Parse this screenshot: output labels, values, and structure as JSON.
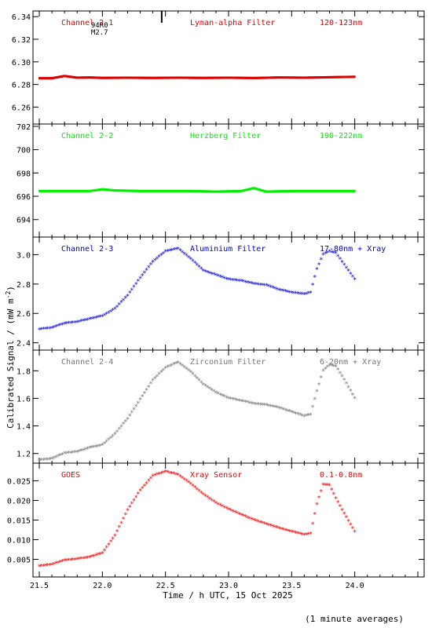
{
  "figure": {
    "ylabel": "Calibrated Signal / (mW m",
    "ylabel_sup": "-2",
    "ylabel_end": ")",
    "xlabel": "Time / h UTC, 15 Oct 2025",
    "footnote": "(1 minute averages)"
  },
  "chart_data": [
    {
      "type": "scatter",
      "channel": "Channel 2-1",
      "filter": "Lyman-alpha Filter",
      "band": "120-123nm",
      "color": "#dd0000",
      "ylim": [
        6.245,
        6.345
      ],
      "yticks": [
        6.26,
        6.28,
        6.3,
        6.32,
        6.34
      ],
      "ytick_labels": [
        "6.26",
        "6.28",
        "6.30",
        "6.32",
        "6.34"
      ],
      "flare_marker": {
        "x": 22.47,
        "label1": "94R0",
        "label2": "M2.7"
      },
      "series": [
        {
          "x": [
            21.5,
            21.6,
            21.7,
            21.8,
            21.9,
            22.0,
            22.2,
            22.4,
            22.6,
            22.8,
            23.0,
            23.2,
            23.4,
            23.6,
            23.8,
            24.0
          ],
          "y": [
            6.2855,
            6.2855,
            6.2875,
            6.286,
            6.2862,
            6.2858,
            6.286,
            6.2858,
            6.286,
            6.2858,
            6.286,
            6.2857,
            6.2862,
            6.286,
            6.2864,
            6.2868
          ]
        }
      ]
    },
    {
      "type": "scatter",
      "channel": "Channel 2-2",
      "filter": "Herzberg Filter",
      "band": "190-222nm",
      "color": "#00ee00",
      "ylim": [
        692.5,
        702.2
      ],
      "yticks": [
        694,
        696,
        698,
        700,
        702
      ],
      "ytick_labels": [
        "694",
        "696",
        "698",
        "700",
        "702"
      ],
      "series": [
        {
          "x": [
            21.5,
            21.7,
            21.9,
            22.0,
            22.1,
            22.3,
            22.5,
            22.7,
            22.9,
            23.1,
            23.2,
            23.3,
            23.5,
            23.7,
            23.9,
            24.0
          ],
          "y": [
            696.45,
            696.45,
            696.45,
            696.6,
            696.5,
            696.45,
            696.45,
            696.45,
            696.4,
            696.45,
            696.7,
            696.4,
            696.45,
            696.45,
            696.45,
            696.45
          ]
        }
      ]
    },
    {
      "type": "scatter",
      "channel": "Channel 2-3",
      "filter": "Aluminium Filter",
      "band": "17-80nm + Xray",
      "color": "#0000cc",
      "ylim": [
        2.35,
        3.12
      ],
      "yticks": [
        2.4,
        2.6,
        2.8,
        3.0
      ],
      "ytick_labels": [
        "2.4",
        "2.6",
        "2.8",
        "3.0"
      ],
      "series": [
        {
          "x": [
            21.5,
            21.6,
            21.7,
            21.8,
            21.9,
            22.0,
            22.1,
            22.2,
            22.3,
            22.4,
            22.5,
            22.6,
            22.7,
            22.8,
            22.9,
            23.0,
            23.1,
            23.2,
            23.3,
            23.4,
            23.5,
            23.6,
            23.65,
            23.7,
            23.75,
            23.8,
            23.85,
            23.9,
            24.0
          ],
          "y": [
            2.49,
            2.5,
            2.53,
            2.54,
            2.56,
            2.58,
            2.63,
            2.72,
            2.84,
            2.95,
            3.02,
            3.04,
            2.97,
            2.89,
            2.86,
            2.83,
            2.82,
            2.8,
            2.79,
            2.76,
            2.74,
            2.73,
            2.74,
            2.9,
            3.0,
            3.02,
            3.01,
            2.95,
            2.83
          ]
        }
      ]
    },
    {
      "type": "scatter",
      "channel": "Channel 2-4",
      "filter": "Zirconium Filter",
      "band": "6-20nm + Xray",
      "color": "#777777",
      "ylim": [
        1.13,
        1.95
      ],
      "yticks": [
        1.2,
        1.4,
        1.6,
        1.8
      ],
      "ytick_labels": [
        "1.2",
        "1.4",
        "1.6",
        "1.8"
      ],
      "series": [
        {
          "x": [
            21.5,
            21.6,
            21.7,
            21.8,
            21.9,
            22.0,
            22.1,
            22.2,
            22.3,
            22.4,
            22.5,
            22.6,
            22.7,
            22.8,
            22.9,
            23.0,
            23.1,
            23.2,
            23.3,
            23.4,
            23.5,
            23.6,
            23.65,
            23.7,
            23.75,
            23.8,
            23.85,
            23.9,
            24.0
          ],
          "y": [
            1.15,
            1.16,
            1.2,
            1.21,
            1.24,
            1.26,
            1.34,
            1.45,
            1.59,
            1.73,
            1.82,
            1.86,
            1.79,
            1.7,
            1.64,
            1.6,
            1.58,
            1.56,
            1.55,
            1.53,
            1.5,
            1.47,
            1.48,
            1.65,
            1.8,
            1.84,
            1.83,
            1.76,
            1.6
          ]
        }
      ]
    },
    {
      "type": "scatter",
      "channel": "GOES",
      "filter": "Xray Sensor",
      "band": "0.1-0.8nm",
      "color": "#ee0000",
      "ylim": [
        0.0005,
        0.0295
      ],
      "yticks": [
        0.005,
        0.01,
        0.015,
        0.02,
        0.025
      ],
      "ytick_labels": [
        "0.005",
        "0.010",
        "0.015",
        "0.020",
        "0.025"
      ],
      "series": [
        {
          "x": [
            21.5,
            21.6,
            21.7,
            21.8,
            21.9,
            22.0,
            22.1,
            22.2,
            22.3,
            22.4,
            22.5,
            22.6,
            22.7,
            22.8,
            22.9,
            23.0,
            23.1,
            23.2,
            23.3,
            23.4,
            23.5,
            23.6,
            23.65,
            23.7,
            23.75,
            23.8,
            23.85,
            23.9,
            24.0
          ],
          "y": [
            0.0032,
            0.0036,
            0.0047,
            0.005,
            0.0055,
            0.0065,
            0.011,
            0.0175,
            0.0225,
            0.0262,
            0.0273,
            0.0265,
            0.0242,
            0.0215,
            0.0193,
            0.0177,
            0.0163,
            0.015,
            0.0139,
            0.0129,
            0.012,
            0.0112,
            0.0115,
            0.019,
            0.024,
            0.0238,
            0.0205,
            0.0175,
            0.012
          ]
        }
      ]
    }
  ],
  "xaxis": {
    "xlim": [
      21.45,
      24.55
    ],
    "ticks": [
      21.5,
      22.0,
      22.5,
      23.0,
      23.5,
      24.0
    ],
    "tick_labels": [
      "21.5",
      "22.0",
      "22.5",
      "23.0",
      "23.5",
      "24.0"
    ]
  }
}
